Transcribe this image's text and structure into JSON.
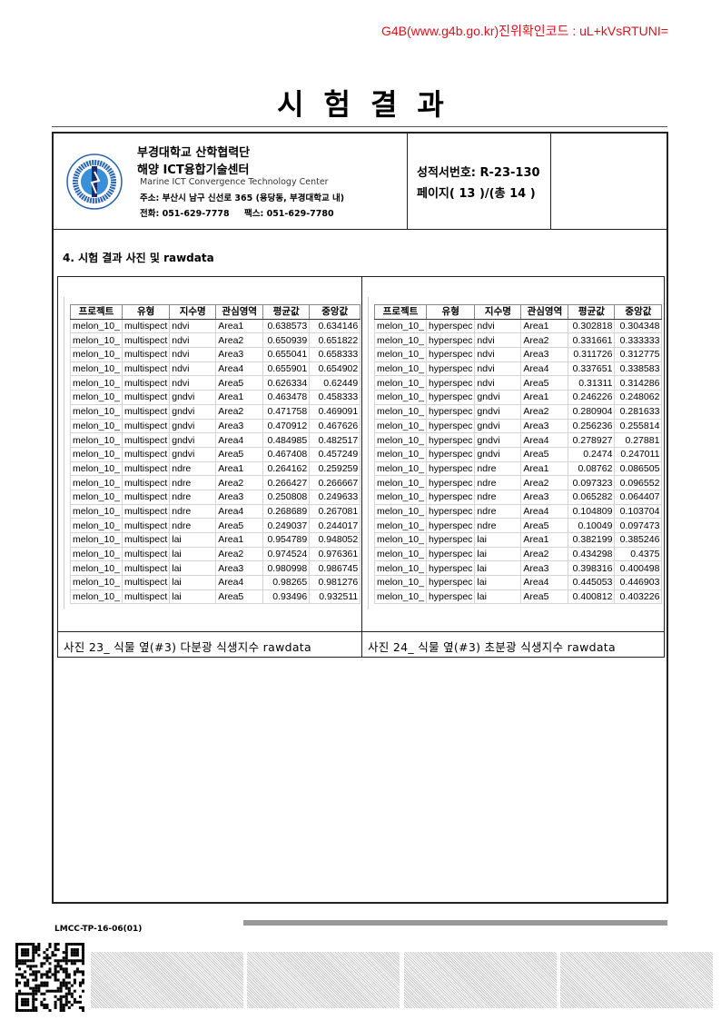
{
  "verify_code": "G4B(www.g4b.go.kr)진위확인코드 : uL+kVsRTUNI=",
  "title": "시험결과",
  "header": {
    "org1": "부경대학교 산학협력단",
    "org2": "해양 ICT융합기술센터",
    "org_en": "Marine ICT Convergence Technology Center",
    "address": "주소: 부산시 남구 신선로 365 (용당동, 부경대학교 내)",
    "phone": "전화: 051-629-7778",
    "fax": "팩스:  051-629-7780",
    "report_no": "성적서번호: R-23-130",
    "page": "페이지( 13 )/(총 14 )",
    "logo_text": "PUKYONG NATIONAL UNIVERSITY 부경대학교"
  },
  "section_title": "4. 시험 결과 사진 및 rawdata",
  "tables": [
    {
      "caption": "사진 23_ 식물 옆(#3) 다분광 식생지수 rawdata",
      "columns": [
        "프로젝트",
        "유형",
        "지수명",
        "관심영역",
        "평균값",
        "중앙값"
      ],
      "rows": [
        [
          "melon_10_",
          "multispect",
          "ndvi",
          "Area1",
          "0.638573",
          "0.634146"
        ],
        [
          "melon_10_",
          "multispect",
          "ndvi",
          "Area2",
          "0.650939",
          "0.651822"
        ],
        [
          "melon_10_",
          "multispect",
          "ndvi",
          "Area3",
          "0.655041",
          "0.658333"
        ],
        [
          "melon_10_",
          "multispect",
          "ndvi",
          "Area4",
          "0.655901",
          "0.654902"
        ],
        [
          "melon_10_",
          "multispect",
          "ndvi",
          "Area5",
          "0.626334",
          "0.62449"
        ],
        [
          "melon_10_",
          "multispect",
          "gndvi",
          "Area1",
          "0.463478",
          "0.458333"
        ],
        [
          "melon_10_",
          "multispect",
          "gndvi",
          "Area2",
          "0.471758",
          "0.469091"
        ],
        [
          "melon_10_",
          "multispect",
          "gndvi",
          "Area3",
          "0.470912",
          "0.467626"
        ],
        [
          "melon_10_",
          "multispect",
          "gndvi",
          "Area4",
          "0.484985",
          "0.482517"
        ],
        [
          "melon_10_",
          "multispect",
          "gndvi",
          "Area5",
          "0.467408",
          "0.457249"
        ],
        [
          "melon_10_",
          "multispect",
          "ndre",
          "Area1",
          "0.264162",
          "0.259259"
        ],
        [
          "melon_10_",
          "multispect",
          "ndre",
          "Area2",
          "0.266427",
          "0.266667"
        ],
        [
          "melon_10_",
          "multispect",
          "ndre",
          "Area3",
          "0.250808",
          "0.249633"
        ],
        [
          "melon_10_",
          "multispect",
          "ndre",
          "Area4",
          "0.268689",
          "0.267081"
        ],
        [
          "melon_10_",
          "multispect",
          "ndre",
          "Area5",
          "0.249037",
          "0.244017"
        ],
        [
          "melon_10_",
          "multispect",
          "lai",
          "Area1",
          "0.954789",
          "0.948052"
        ],
        [
          "melon_10_",
          "multispect",
          "lai",
          "Area2",
          "0.974524",
          "0.976361"
        ],
        [
          "melon_10_",
          "multispect",
          "lai",
          "Area3",
          "0.980998",
          "0.986745"
        ],
        [
          "melon_10_",
          "multispect",
          "lai",
          "Area4",
          "0.98265",
          "0.981276"
        ],
        [
          "melon_10_",
          "multispect",
          "lai",
          "Area5",
          "0.93496",
          "0.932511"
        ]
      ]
    },
    {
      "caption": "사진 24_ 식물 옆(#3) 초분광 식생지수 rawdata",
      "columns": [
        "프로젝트",
        "유형",
        "지수명",
        "관심영역",
        "평균값",
        "중앙값"
      ],
      "rows": [
        [
          "melon_10_",
          "hyperspec",
          "ndvi",
          "Area1",
          "0.302818",
          "0.304348"
        ],
        [
          "melon_10_",
          "hyperspec",
          "ndvi",
          "Area2",
          "0.331661",
          "0.333333"
        ],
        [
          "melon_10_",
          "hyperspec",
          "ndvi",
          "Area3",
          "0.311726",
          "0.312775"
        ],
        [
          "melon_10_",
          "hyperspec",
          "ndvi",
          "Area4",
          "0.337651",
          "0.338583"
        ],
        [
          "melon_10_",
          "hyperspec",
          "ndvi",
          "Area5",
          "0.31311",
          "0.314286"
        ],
        [
          "melon_10_",
          "hyperspec",
          "gndvi",
          "Area1",
          "0.246226",
          "0.248062"
        ],
        [
          "melon_10_",
          "hyperspec",
          "gndvi",
          "Area2",
          "0.280904",
          "0.281633"
        ],
        [
          "melon_10_",
          "hyperspec",
          "gndvi",
          "Area3",
          "0.256236",
          "0.255814"
        ],
        [
          "melon_10_",
          "hyperspec",
          "gndvi",
          "Area4",
          "0.278927",
          "0.27881"
        ],
        [
          "melon_10_",
          "hyperspec",
          "gndvi",
          "Area5",
          "0.2474",
          "0.247011"
        ],
        [
          "melon_10_",
          "hyperspec",
          "ndre",
          "Area1",
          "0.08762",
          "0.086505"
        ],
        [
          "melon_10_",
          "hyperspec",
          "ndre",
          "Area2",
          "0.097323",
          "0.096552"
        ],
        [
          "melon_10_",
          "hyperspec",
          "ndre",
          "Area3",
          "0.065282",
          "0.064407"
        ],
        [
          "melon_10_",
          "hyperspec",
          "ndre",
          "Area4",
          "0.104809",
          "0.103704"
        ],
        [
          "melon_10_",
          "hyperspec",
          "ndre",
          "Area5",
          "0.10049",
          "0.097473"
        ],
        [
          "melon_10_",
          "hyperspec",
          "lai",
          "Area1",
          "0.382199",
          "0.385246"
        ],
        [
          "melon_10_",
          "hyperspec",
          "lai",
          "Area2",
          "0.434298",
          "0.4375"
        ],
        [
          "melon_10_",
          "hyperspec",
          "lai",
          "Area3",
          "0.398316",
          "0.400498"
        ],
        [
          "melon_10_",
          "hyperspec",
          "lai",
          "Area4",
          "0.445053",
          "0.446903"
        ],
        [
          "melon_10_",
          "hyperspec",
          "lai",
          "Area5",
          "0.400812",
          "0.403226"
        ]
      ]
    }
  ],
  "footer": {
    "form_code": "LMCC-TP-16-06(01)"
  }
}
